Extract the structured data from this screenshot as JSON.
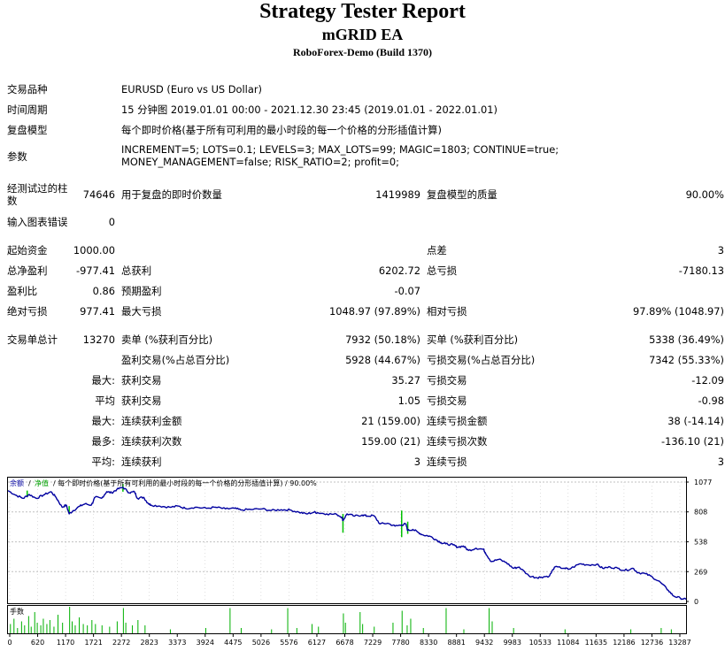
{
  "header": {
    "title": "Strategy Tester Report",
    "ea": "mGRID EA",
    "broker": "RoboForex-Demo (Build 1370)"
  },
  "info": {
    "symbol_label": "交易品种",
    "symbol_value": "EURUSD (Euro vs US Dollar)",
    "period_label": "时间周期",
    "period_value": "15 分钟图 2019.01.01 00:00 - 2021.12.30 23:45 (2019.01.01 - 2022.01.01)",
    "model_label": "复盘模型",
    "model_value": "每个即时价格(基于所有可利用的最小时段的每一个价格的分形插值计算)",
    "params_label": "参数",
    "params_value": "INCREMENT=5; LOTS=0.1; LEVELS=3; MAX_LOTS=99; MAGIC=1803; CONTINUE=true; MONEY_MANAGEMENT=false; RISK_RATIO=2; profit=0;"
  },
  "bars": {
    "bars_label": "经测试过的柱数",
    "bars_value": "74646",
    "ticks_label": "用于复盘的即时价数量",
    "ticks_value": "1419989",
    "quality_label": "复盘模型的质量",
    "quality_value": "90.00%",
    "errors_label": "输入图表错误",
    "errors_value": "0"
  },
  "stats": {
    "deposit_label": "起始资金",
    "deposit_value": "1000.00",
    "spread_label": "点差",
    "spread_value": "3",
    "net_label": "总净盈利",
    "net_value": "-977.41",
    "gross_profit_label": "总获利",
    "gross_profit_value": "6202.72",
    "gross_loss_label": "总亏损",
    "gross_loss_value": "-7180.13",
    "pf_label": "盈利比",
    "pf_value": "0.86",
    "expected_label": "预期盈利",
    "expected_value": "-0.07",
    "abs_dd_label": "绝对亏损",
    "abs_dd_value": "977.41",
    "max_dd_label": "最大亏损",
    "max_dd_value": "1048.97 (97.89%)",
    "rel_dd_label": "相对亏损",
    "rel_dd_value": "97.89% (1048.97)"
  },
  "trades": {
    "total_label": "交易单总计",
    "total_value": "13270",
    "short_label": "卖单 (%获利百分比)",
    "short_value": "7932 (50.18%)",
    "long_label": "买单 (%获利百分比)",
    "long_value": "5338 (36.49%)",
    "profit_trades_label": "盈利交易(%占总百分比)",
    "profit_trades_value": "5928 (44.67%)",
    "loss_trades_label": "亏损交易(%占总百分比)",
    "loss_trades_value": "7342 (55.33%)",
    "largest_prefix": "最大:",
    "largest_profit_label": "获利交易",
    "largest_profit_value": "35.27",
    "largest_loss_label": "亏损交易",
    "largest_loss_value": "-12.09",
    "average_prefix": "平均",
    "average_profit_label": "获利交易",
    "average_profit_value": "1.05",
    "average_loss_label": "亏损交易",
    "average_loss_value": "-0.98",
    "max_prefix": "最大:",
    "max_consec_wins_label": "连续获利金额",
    "max_consec_wins_value": "21 (159.00)",
    "max_consec_losses_label": "连续亏损金额",
    "max_consec_losses_value": "38 (-14.14)",
    "maximal_prefix": "最多:",
    "maximal_consec_profit_label": "连续获利次数",
    "maximal_consec_profit_value": "159.00 (21)",
    "maximal_consec_loss_label": "连续亏损次数",
    "maximal_consec_loss_value": "-136.10 (21)",
    "avg_prefix": "平均:",
    "avg_consec_wins_label": "连续获利",
    "avg_consec_wins_value": "3",
    "avg_consec_losses_label": "连续亏损",
    "avg_consec_losses_value": "3"
  },
  "chart_data": {
    "type": "line",
    "legend_balance": "余额",
    "legend_separator": "/",
    "legend_equity": "净值",
    "legend_rest": "/ 每个即时价格(基于所有可利用的最小时段的每一个价格的分形插值计算) / 90.00%",
    "volume_label": "手数",
    "y_ticks": [
      "1077",
      "808",
      "538",
      "269",
      "0"
    ],
    "y_tick_values": [
      1077,
      808,
      538,
      269,
      0
    ],
    "ylim": [
      0,
      1077
    ],
    "x_ticks": [
      "0",
      "620",
      "1170",
      "1721",
      "2272",
      "2823",
      "3373",
      "3924",
      "4475",
      "5026",
      "5576",
      "6127",
      "6678",
      "7229",
      "7780",
      "8330",
      "8881",
      "9432",
      "9983",
      "10533",
      "11084",
      "11635",
      "12186",
      "12736",
      "13287"
    ],
    "xlim": [
      0,
      13400
    ],
    "colors": {
      "balance": "#0000a0",
      "equity": "#00c000",
      "volume": "#00b000",
      "grid": "#c0c0c0",
      "axis": "#000000"
    },
    "balance_points": [
      [
        0,
        1000
      ],
      [
        150,
        960
      ],
      [
        300,
        930
      ],
      [
        420,
        965
      ],
      [
        560,
        930
      ],
      [
        700,
        960
      ],
      [
        850,
        990
      ],
      [
        950,
        940
      ],
      [
        1070,
        850
      ],
      [
        1150,
        870
      ],
      [
        1210,
        790
      ],
      [
        1290,
        820
      ],
      [
        1420,
        860
      ],
      [
        1520,
        880
      ],
      [
        1650,
        870
      ],
      [
        1720,
        940
      ],
      [
        1850,
        930
      ],
      [
        1950,
        990
      ],
      [
        2050,
        980
      ],
      [
        2150,
        1010
      ],
      [
        2272,
        1030
      ],
      [
        2400,
        980
      ],
      [
        2500,
        990
      ],
      [
        2560,
        930
      ],
      [
        2680,
        940
      ],
      [
        2760,
        890
      ],
      [
        2823,
        870
      ],
      [
        3000,
        860
      ],
      [
        3200,
        850
      ],
      [
        3373,
        860
      ],
      [
        3500,
        840
      ],
      [
        3700,
        850
      ],
      [
        3924,
        840
      ],
      [
        4100,
        850
      ],
      [
        4300,
        835
      ],
      [
        4475,
        840
      ],
      [
        4600,
        825
      ],
      [
        4800,
        830
      ],
      [
        5026,
        835
      ],
      [
        5200,
        820
      ],
      [
        5400,
        828
      ],
      [
        5576,
        825
      ],
      [
        5750,
        805
      ],
      [
        5900,
        790
      ],
      [
        6050,
        805
      ],
      [
        6127,
        800
      ],
      [
        6300,
        790
      ],
      [
        6500,
        785
      ],
      [
        6600,
        760
      ],
      [
        6620,
        730
      ],
      [
        6700,
        790
      ],
      [
        6850,
        770
      ],
      [
        7000,
        780
      ],
      [
        7100,
        770
      ],
      [
        7229,
        775
      ],
      [
        7350,
        700
      ],
      [
        7500,
        705
      ],
      [
        7650,
        680
      ],
      [
        7780,
        690
      ],
      [
        7860,
        700
      ],
      [
        7900,
        640
      ],
      [
        8000,
        650
      ],
      [
        8100,
        625
      ],
      [
        8200,
        600
      ],
      [
        8330,
        590
      ],
      [
        8450,
        560
      ],
      [
        8560,
        530
      ],
      [
        8650,
        520
      ],
      [
        8800,
        510
      ],
      [
        8881,
        490
      ],
      [
        9000,
        500
      ],
      [
        9100,
        460
      ],
      [
        9250,
        480
      ],
      [
        9400,
        470
      ],
      [
        9432,
        440
      ],
      [
        9550,
        360
      ],
      [
        9700,
        380
      ],
      [
        9850,
        350
      ],
      [
        9983,
        300
      ],
      [
        10100,
        310
      ],
      [
        10300,
        230
      ],
      [
        10450,
        215
      ],
      [
        10533,
        220
      ],
      [
        10700,
        230
      ],
      [
        10800,
        310
      ],
      [
        11000,
        300
      ],
      [
        11084,
        290
      ],
      [
        11300,
        340
      ],
      [
        11450,
        330
      ],
      [
        11635,
        335
      ],
      [
        11750,
        300
      ],
      [
        11900,
        310
      ],
      [
        12050,
        300
      ],
      [
        12186,
        280
      ],
      [
        12350,
        300
      ],
      [
        12450,
        260
      ],
      [
        12600,
        250
      ],
      [
        12736,
        220
      ],
      [
        12900,
        170
      ],
      [
        13050,
        100
      ],
      [
        13150,
        50
      ],
      [
        13287,
        30
      ],
      [
        13400,
        18
      ]
    ],
    "equity_spikes": [
      [
        380,
        1000,
        940
      ],
      [
        1210,
        790,
        860
      ],
      [
        2272,
        1060,
        990
      ],
      [
        6620,
        790,
        620
      ],
      [
        7780,
        820,
        580
      ],
      [
        7900,
        720,
        610
      ]
    ],
    "volume_bars": [
      [
        40,
        0.35
      ],
      [
        110,
        0.55
      ],
      [
        180,
        0.2
      ],
      [
        260,
        0.45
      ],
      [
        320,
        0.3
      ],
      [
        400,
        0.65
      ],
      [
        450,
        0.25
      ],
      [
        520,
        0.8
      ],
      [
        570,
        0.4
      ],
      [
        640,
        0.3
      ],
      [
        690,
        0.55
      ],
      [
        760,
        0.35
      ],
      [
        820,
        0.5
      ],
      [
        900,
        0.25
      ],
      [
        980,
        0.7
      ],
      [
        1070,
        0.4
      ],
      [
        1210,
        1.0
      ],
      [
        1260,
        0.45
      ],
      [
        1320,
        0.3
      ],
      [
        1400,
        0.6
      ],
      [
        1480,
        0.35
      ],
      [
        1560,
        0.3
      ],
      [
        1650,
        0.5
      ],
      [
        1720,
        0.35
      ],
      [
        1850,
        0.3
      ],
      [
        2000,
        0.25
      ],
      [
        2150,
        0.45
      ],
      [
        2272,
        0.95
      ],
      [
        2320,
        0.4
      ],
      [
        2450,
        0.3
      ],
      [
        2560,
        0.5
      ],
      [
        2700,
        0.3
      ],
      [
        3200,
        0.15
      ],
      [
        3900,
        0.2
      ],
      [
        4380,
        0.95
      ],
      [
        4600,
        0.2
      ],
      [
        5200,
        0.15
      ],
      [
        5520,
        0.95
      ],
      [
        5700,
        0.2
      ],
      [
        6000,
        0.35
      ],
      [
        6127,
        0.25
      ],
      [
        6620,
        0.75
      ],
      [
        6660,
        0.4
      ],
      [
        6950,
        0.8
      ],
      [
        7000,
        0.35
      ],
      [
        7229,
        0.25
      ],
      [
        7600,
        0.4
      ],
      [
        7780,
        0.85
      ],
      [
        7880,
        0.3
      ],
      [
        7950,
        0.55
      ],
      [
        8200,
        0.2
      ],
      [
        8650,
        0.95
      ],
      [
        9000,
        0.15
      ],
      [
        9500,
        0.95
      ],
      [
        9560,
        0.45
      ],
      [
        9983,
        0.2
      ],
      [
        11000,
        0.15
      ],
      [
        12300,
        0.15
      ],
      [
        12900,
        0.2
      ],
      [
        13100,
        0.15
      ]
    ]
  }
}
